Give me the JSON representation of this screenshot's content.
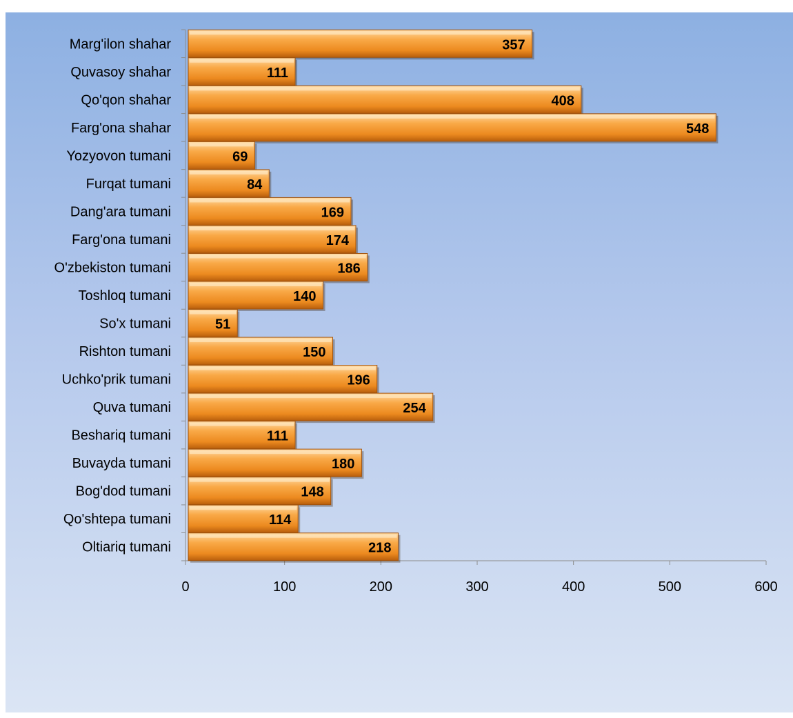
{
  "chart_data": {
    "type": "bar",
    "orientation": "horizontal",
    "categories": [
      "Marg'ilon shahar",
      "Quvasoy shahar",
      "Qo'qon shahar",
      "Farg'ona shahar",
      "Yozyovon tumani",
      "Furqat tumani",
      "Dang'ara tumani",
      "Farg'ona tumani",
      "O'zbekiston tumani",
      "Toshloq tumani",
      "So'x tumani",
      "Rishton tumani",
      "Uchko'prik tumani",
      "Quva tumani",
      "Beshariq tumani",
      "Buvayda tumani",
      "Bog'dod tumani",
      "Qo'shtepa tumani",
      "Oltiariq tumani"
    ],
    "values": [
      357,
      111,
      408,
      548,
      69,
      84,
      169,
      174,
      186,
      140,
      51,
      150,
      196,
      254,
      111,
      180,
      148,
      114,
      218
    ],
    "xlim": [
      0,
      600
    ],
    "xticks": [
      "0",
      "100",
      "200",
      "300",
      "400",
      "500",
      "600"
    ],
    "grid": false,
    "legend": "none",
    "colors": {
      "bar_light": "#ffc680",
      "bar_mid": "#f59a2e",
      "bar_dark": "#c9690f",
      "bar_edge": "#a0520c",
      "background_top": "#8db0e2",
      "background_bottom": "#dbe5f4"
    }
  }
}
